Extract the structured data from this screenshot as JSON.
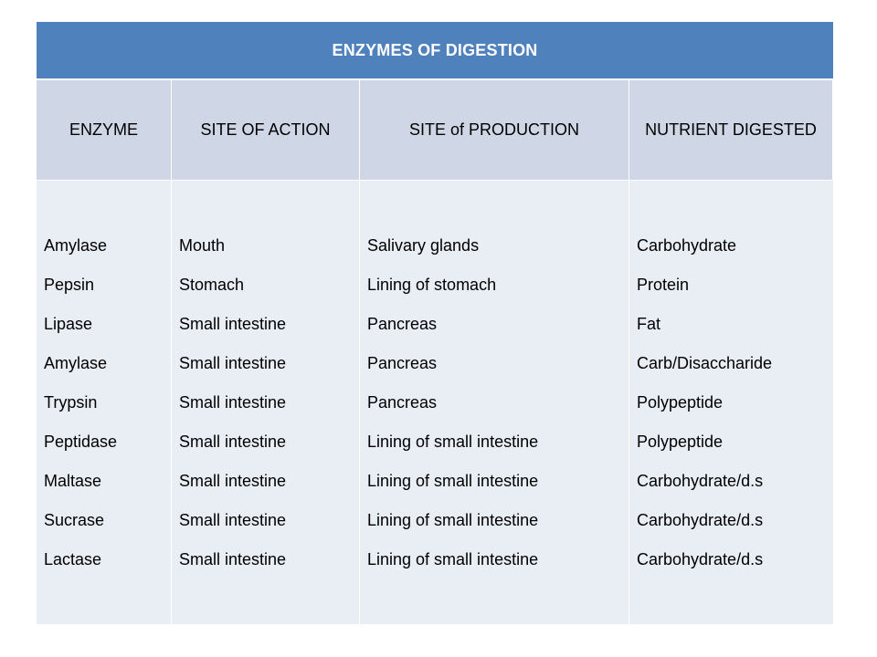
{
  "table": {
    "title": "ENZYMES OF DIGESTION",
    "headers": [
      "ENZYME",
      "SITE OF ACTION",
      "SITE of PRODUCTION",
      "NUTRIENT DIGESTED"
    ],
    "columns": [
      [
        "Amylase",
        "Pepsin",
        "Lipase",
        "Amylase",
        "Trypsin",
        "Peptidase",
        "Maltase",
        "Sucrase",
        "Lactase"
      ],
      [
        "Mouth",
        "Stomach",
        "Small intestine",
        "Small intestine",
        "Small intestine",
        "Small intestine",
        "Small intestine",
        "Small intestine",
        "Small intestine"
      ],
      [
        "Salivary glands",
        "Lining of stomach",
        "Pancreas",
        "Pancreas",
        "Pancreas",
        "Lining of small intestine",
        "Lining of small intestine",
        "Lining of small intestine",
        "Lining of small intestine"
      ],
      [
        "Carbohydrate",
        "Protein",
        "Fat",
        "Carb/Disaccharide",
        "Polypeptide",
        "Polypeptide",
        "Carbohydrate/d.s",
        "Carbohydrate/d.s",
        "Carbohydrate/d.s"
      ]
    ]
  },
  "colors": {
    "title_background": "#4f81bd",
    "header_background": "#cfd7e7",
    "body_background": "#e9edf4"
  }
}
